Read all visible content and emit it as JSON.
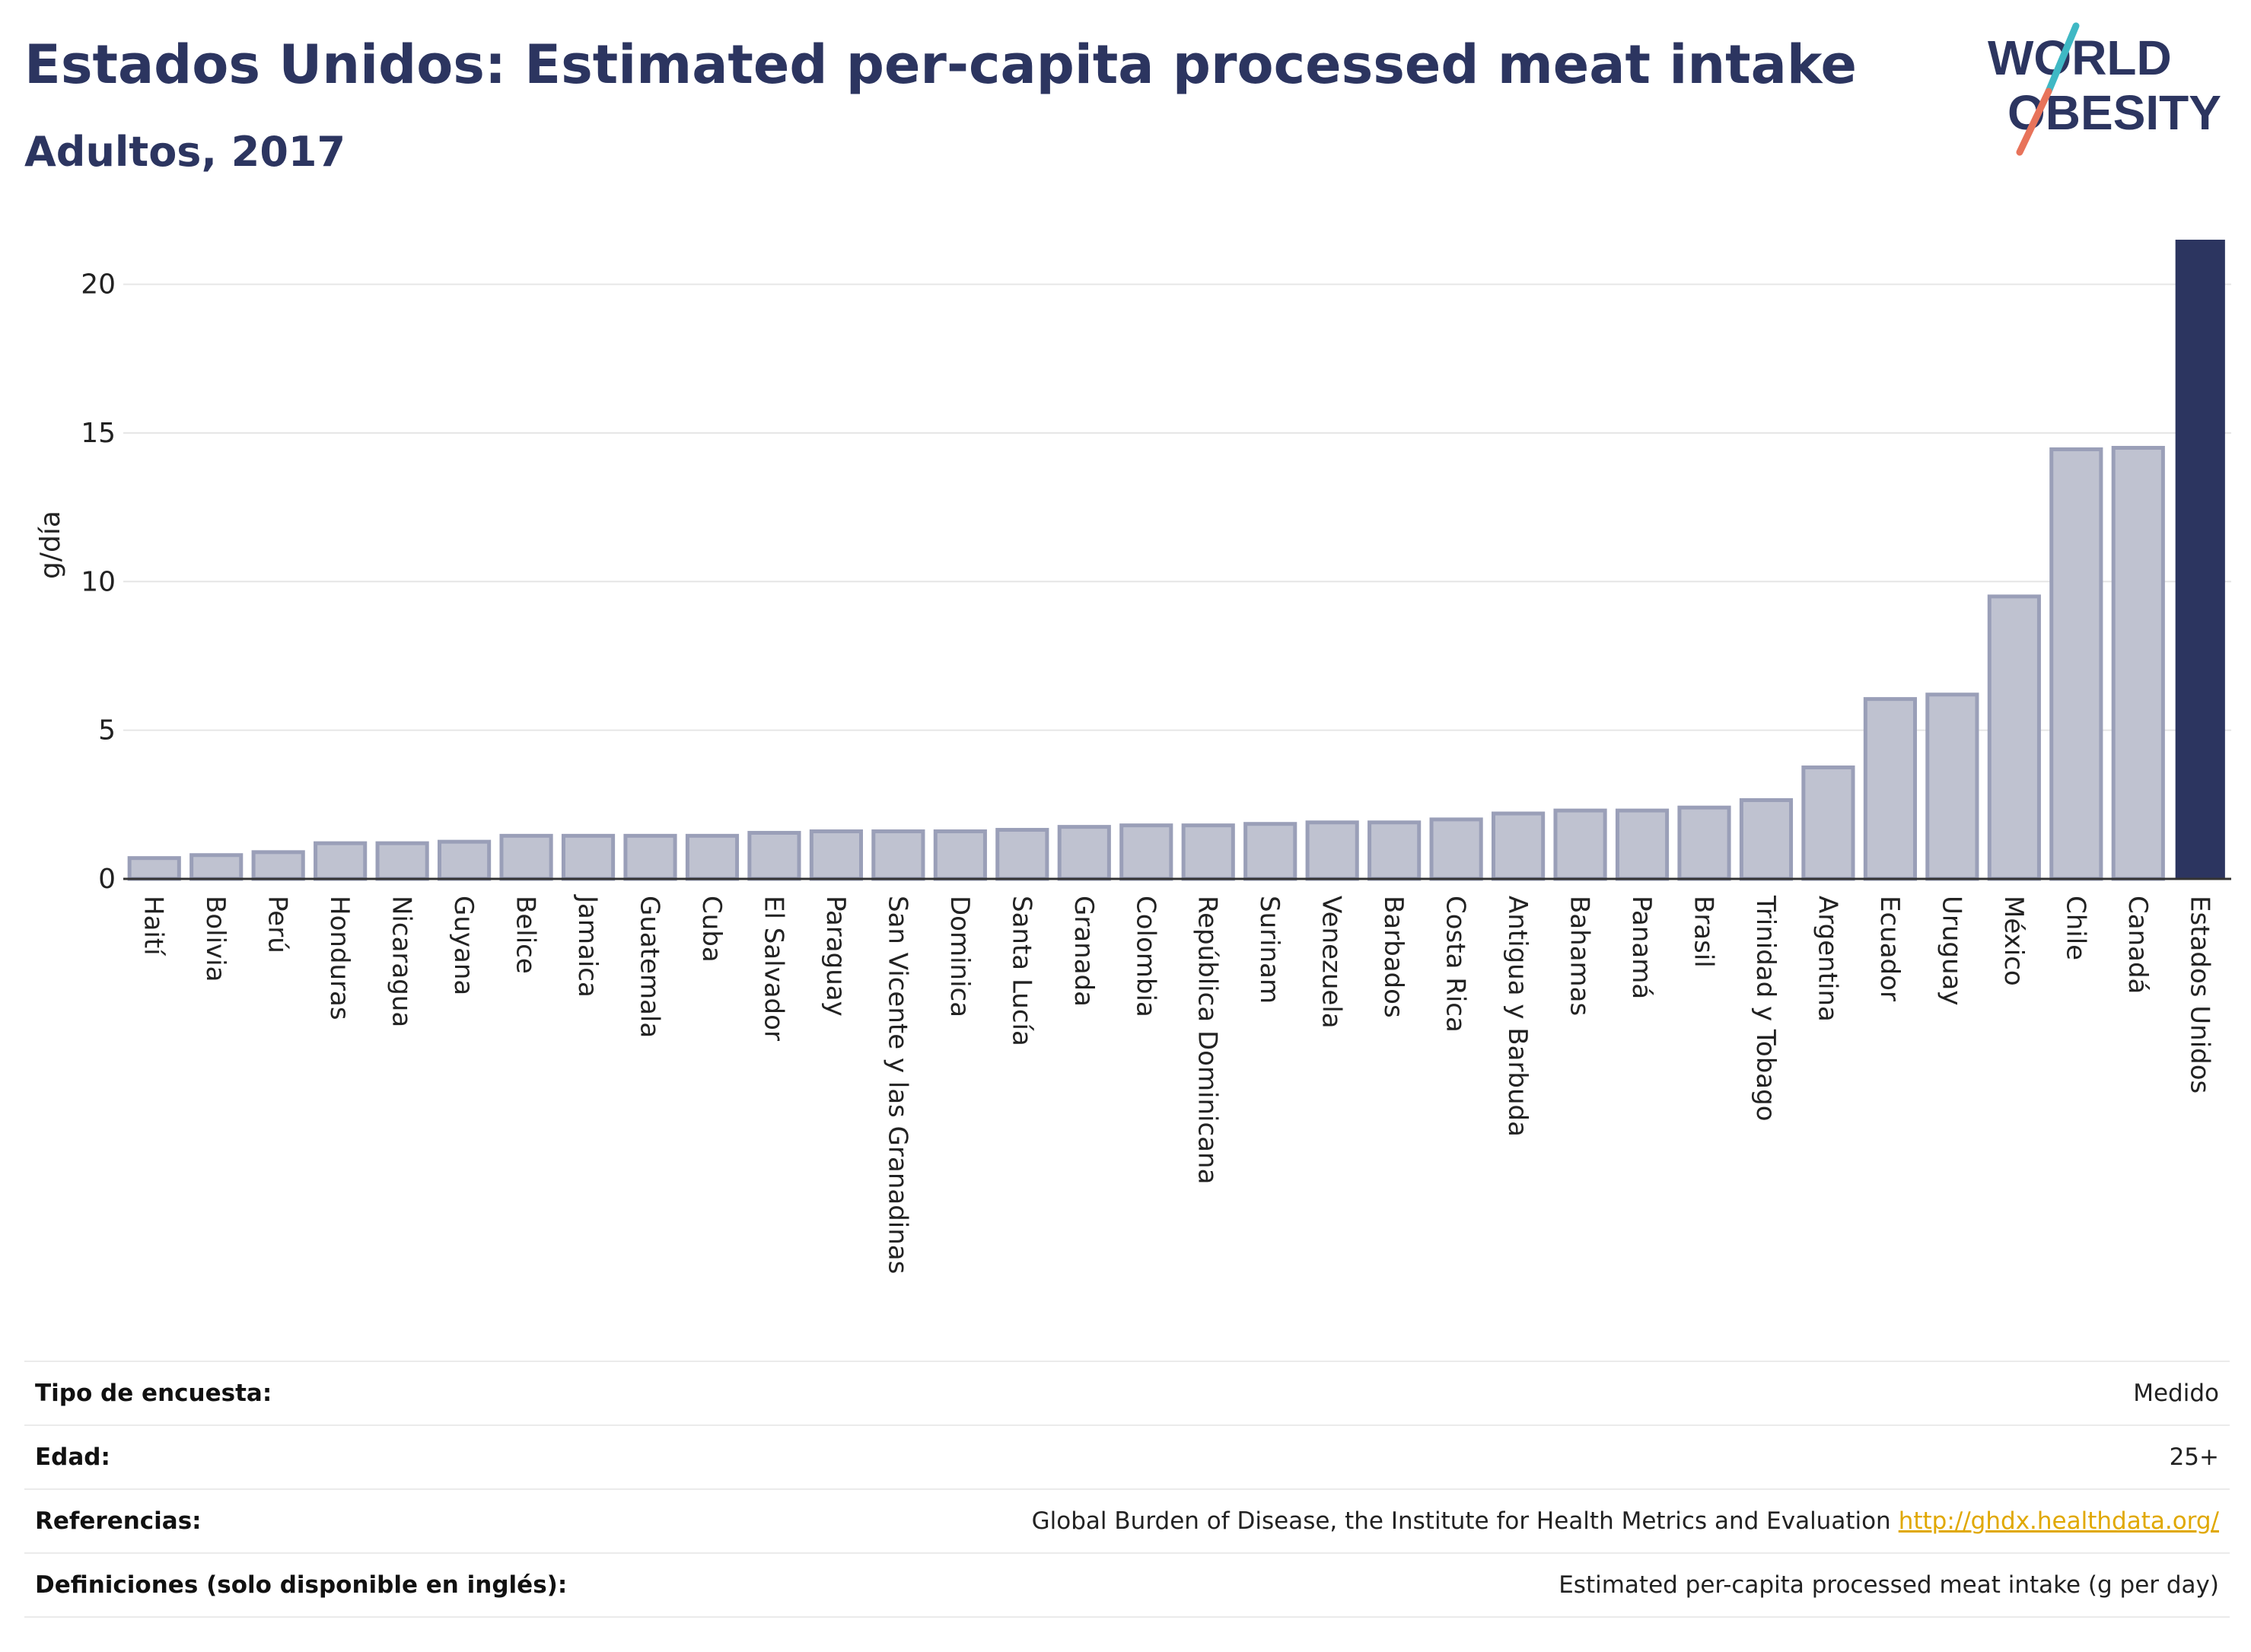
{
  "header": {
    "title": "Estados Unidos: Estimated per-capita processed meat intake",
    "subtitle": "Adultos, 2017"
  },
  "logo": {
    "line1": "WORLD",
    "line2": "OBESITY",
    "colors": {
      "text": "#2c3560",
      "accent_teal": "#3fb8c4",
      "accent_coral": "#e8735a"
    }
  },
  "chart_data": {
    "type": "bar",
    "title": "Estados Unidos: Estimated per-capita processed meat intake",
    "subtitle": "Adultos, 2017",
    "ylabel": "g/día",
    "xlabel": "",
    "ylim": [
      0,
      21.5
    ],
    "yticks": [
      0,
      5,
      10,
      15,
      20
    ],
    "grid": true,
    "highlight": "Estados Unidos",
    "colors": {
      "bar": "#bfc2d0",
      "bar_edge": "#9a9fb8",
      "highlight": "#2c3560",
      "grid": "#e6e6e6"
    },
    "categories": [
      "Haití",
      "Bolivia",
      "Perú",
      "Honduras",
      "Nicaragua",
      "Guyana",
      "Belice",
      "Jamaica",
      "Guatemala",
      "Cuba",
      "El Salvador",
      "Paraguay",
      "San Vicente y las Granadinas",
      "Dominica",
      "Santa Lucía",
      "Granada",
      "Colombia",
      "República Dominicana",
      "Surinam",
      "Venezuela",
      "Barbados",
      "Costa Rica",
      "Antigua y Barbuda",
      "Bahamas",
      "Panamá",
      "Brasil",
      "Trinidad y Tobago",
      "Argentina",
      "Ecuador",
      "Uruguay",
      "México",
      "Chile",
      "Canadá",
      "Estados Unidos"
    ],
    "values": [
      0.7,
      0.8,
      0.9,
      1.2,
      1.2,
      1.25,
      1.45,
      1.45,
      1.45,
      1.45,
      1.55,
      1.6,
      1.6,
      1.6,
      1.65,
      1.75,
      1.8,
      1.8,
      1.85,
      1.9,
      1.9,
      2.0,
      2.2,
      2.3,
      2.3,
      2.4,
      2.65,
      3.75,
      6.05,
      6.2,
      9.5,
      14.45,
      14.5,
      21.5
    ]
  },
  "meta": {
    "rows": [
      {
        "label": "Tipo de encuesta:",
        "value": "Medido"
      },
      {
        "label": "Edad:",
        "value": "25+"
      },
      {
        "label": "Referencias:",
        "value": "Global Burden of Disease, the Institute for Health Metrics and Evaluation",
        "link": "http://ghdx.healthdata.org/"
      },
      {
        "label": "Definiciones (solo disponible en inglés):",
        "value": "Estimated per-capita processed meat intake (g per day)"
      }
    ]
  }
}
